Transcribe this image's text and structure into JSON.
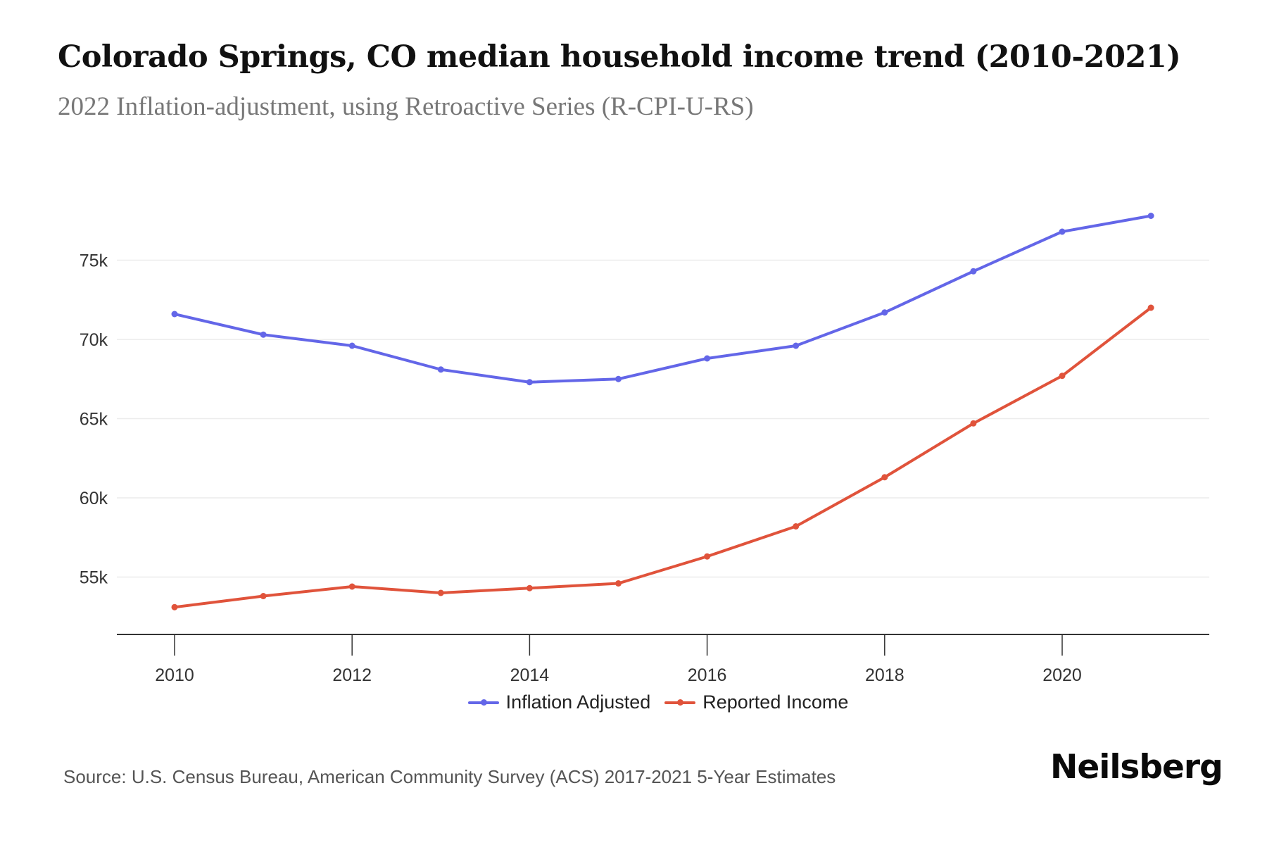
{
  "chart_data": {
    "type": "line",
    "title": "Colorado Springs, CO median household income trend (2010-2021)",
    "subtitle": "2022 Inflation-adjustment, using Retroactive Series (R-CPI-U-RS)",
    "xlabel": "",
    "ylabel": "",
    "x": [
      2010,
      2011,
      2012,
      2013,
      2014,
      2015,
      2016,
      2017,
      2018,
      2019,
      2020,
      2021
    ],
    "x_tick_labels": [
      "2010",
      "2012",
      "2014",
      "2016",
      "2018",
      "2020"
    ],
    "x_ticks": [
      2010,
      2012,
      2014,
      2016,
      2018,
      2020
    ],
    "y_ticks": [
      55000,
      60000,
      65000,
      70000,
      75000
    ],
    "y_tick_labels": [
      "55k",
      "60k",
      "65k",
      "70k",
      "75k"
    ],
    "ylim": [
      51500,
      79000
    ],
    "xlim": [
      2009.35,
      2021.65
    ],
    "grid": "horizontal",
    "legend_position": "bottom-center",
    "series": [
      {
        "name": "Inflation Adjusted",
        "color": "#6366e8",
        "values": [
          71600,
          70300,
          69600,
          68100,
          67300,
          67500,
          68800,
          69600,
          71700,
          74300,
          76800,
          77800
        ]
      },
      {
        "name": "Reported Income",
        "color": "#e0533b",
        "values": [
          53100,
          53800,
          54400,
          54000,
          54300,
          54600,
          56300,
          58200,
          61300,
          64700,
          67700,
          72000
        ]
      }
    ]
  },
  "footer": {
    "source": "Source: U.S. Census Bureau, American Community Survey (ACS) 2017-2021 5-Year Estimates",
    "brand": "Neilsberg"
  }
}
